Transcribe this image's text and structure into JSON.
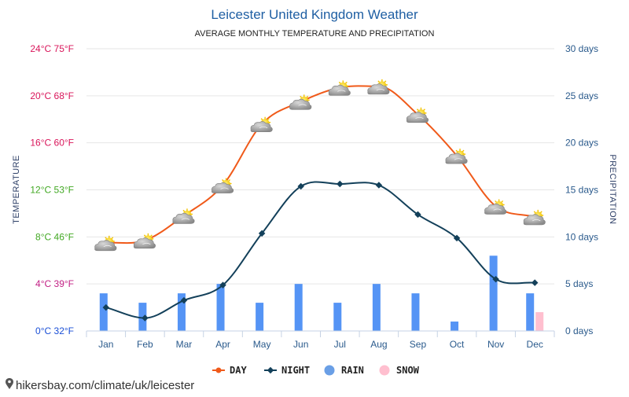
{
  "chart_data": {
    "type": "line",
    "title": "Leicester United Kingdom Weather",
    "subtitle": "AVERAGE MONTHLY TEMPERATURE AND PRECIPITATION",
    "categories": [
      "Jan",
      "Feb",
      "Mar",
      "Apr",
      "May",
      "Jun",
      "Jul",
      "Aug",
      "Sep",
      "Oct",
      "Nov",
      "Dec"
    ],
    "y_left": {
      "label": "TEMPERATURE",
      "unit": "°C",
      "ylim": [
        0,
        24
      ],
      "ticks": [
        {
          "value": 0,
          "label": "0°C 32°F",
          "color": "#1a4fd6"
        },
        {
          "value": 4,
          "label": "4°C 39°F",
          "color": "#c21f84"
        },
        {
          "value": 8,
          "label": "8°C 46°F",
          "color": "#41a822"
        },
        {
          "value": 12,
          "label": "12°C 53°F",
          "color": "#41a822"
        },
        {
          "value": 16,
          "label": "16°C 60°F",
          "color": "#d9155a"
        },
        {
          "value": 20,
          "label": "20°C 68°F",
          "color": "#d9155a"
        },
        {
          "value": 24,
          "label": "24°C 75°F",
          "color": "#d9155a"
        }
      ]
    },
    "y_right": {
      "label": "PRECIPITATION",
      "unit": "days",
      "ylim": [
        0,
        30
      ],
      "ticks": [
        {
          "value": 0,
          "label": "0 days"
        },
        {
          "value": 5,
          "label": "5 days"
        },
        {
          "value": 10,
          "label": "10 days"
        },
        {
          "value": 15,
          "label": "15 days"
        },
        {
          "value": 20,
          "label": "20 days"
        },
        {
          "value": 25,
          "label": "25 days"
        },
        {
          "value": 30,
          "label": "30 days"
        }
      ]
    },
    "series": [
      {
        "name": "DAY",
        "axis": "left",
        "type": "line",
        "color": "#f05a1a",
        "values": [
          7.5,
          7.7,
          9.8,
          12.4,
          17.6,
          19.5,
          20.7,
          20.8,
          18.4,
          14.9,
          10.6,
          9.7
        ]
      },
      {
        "name": "NIGHT",
        "axis": "left",
        "type": "line",
        "color": "#13405a",
        "values": [
          2.0,
          1.1,
          2.6,
          3.9,
          8.3,
          12.3,
          12.5,
          12.4,
          9.9,
          7.9,
          4.4,
          4.1
        ]
      },
      {
        "name": "RAIN",
        "axis": "right",
        "type": "bar",
        "color": "#5594f5",
        "values": [
          4,
          3,
          4,
          5,
          3,
          5,
          3,
          5,
          4,
          1,
          8,
          4
        ]
      },
      {
        "name": "SNOW",
        "axis": "right",
        "type": "bar",
        "color": "#ffbfcf",
        "values": [
          0,
          0,
          0,
          0,
          0,
          0,
          0,
          0,
          0,
          0,
          0,
          2
        ]
      }
    ],
    "legend": {
      "position": "bottom",
      "items": [
        {
          "label": "DAY",
          "color": "#f05a1a",
          "marker": "line-dot"
        },
        {
          "label": "NIGHT",
          "color": "#13405a",
          "marker": "line-diamond"
        },
        {
          "label": "RAIN",
          "color": "#6a9fe6",
          "marker": "circle"
        },
        {
          "label": "SNOW",
          "color": "#ffbfcf",
          "marker": "circle"
        }
      ]
    },
    "weather_icon": "partly-cloudy-icon",
    "grid": true
  },
  "source_text": "hikersbay.com/climate/uk/leicester",
  "colors": {
    "title": "#1f5fa3",
    "right_axis": "#2a5a8c",
    "month_label": "#2a5a8c",
    "grid": "#e6e6e6"
  }
}
